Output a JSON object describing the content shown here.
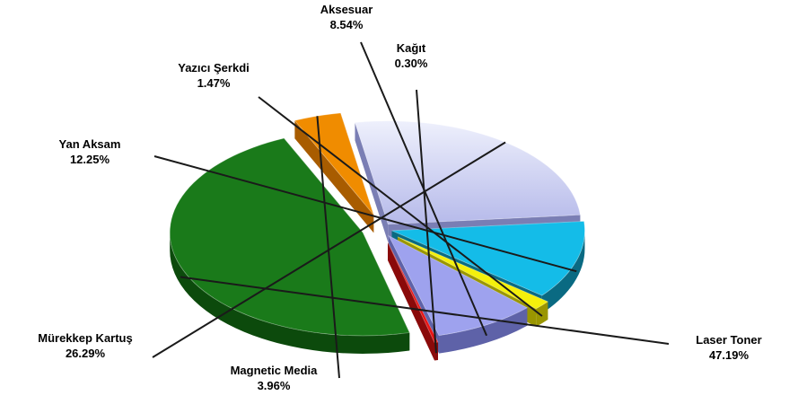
{
  "chart_data": {
    "type": "pie",
    "title": "",
    "style": "3d-exploded",
    "categories": [
      "Laser Toner",
      "Magnetic Media",
      "Mürekkep Kartuş",
      "Yan Aksam",
      "Yazıcı Şerkdi",
      "Aksesuar",
      "Kağıt"
    ],
    "values": [
      47.19,
      3.96,
      26.29,
      12.25,
      1.47,
      8.54,
      0.3
    ],
    "value_labels": [
      "47.19%",
      "3.96%",
      "26.29%",
      "12.25%",
      "1.47%",
      "8.54%",
      "0.30%"
    ],
    "colors": [
      "#1a7a1a",
      "#f08c00",
      "#c4c8f4",
      "#14bce8",
      "#f4f00c",
      "#9ea2ee",
      "#e81414"
    ],
    "side_colors": [
      "#0c4a0c",
      "#a85c00",
      "#7a7eb4",
      "#0a6a82",
      "#9a9600",
      "#5e62a8",
      "#8a0a0a"
    ],
    "legend": "none"
  }
}
